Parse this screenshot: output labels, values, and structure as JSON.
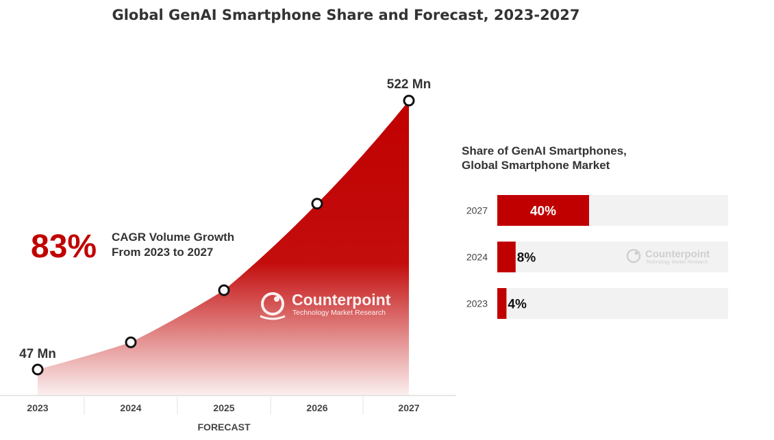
{
  "title": "Global GenAI Smartphone Share and Forecast, 2023-2027",
  "colors": {
    "accent": "#c00000",
    "track": "#f2f2f2",
    "text": "#222222",
    "muted": "#444444"
  },
  "chart_data": [
    {
      "type": "area",
      "categories": [
        "2023",
        "2024",
        "2025",
        "2026",
        "2027"
      ],
      "values": [
        47,
        95,
        187,
        340,
        522
      ],
      "unit": "Mn",
      "ylim": [
        0,
        560
      ],
      "data_labels": {
        "2023": "47 Mn",
        "2027": "522 Mn"
      },
      "xlabel": "FORECAST",
      "annotation": {
        "big": "83%",
        "line1": "CAGR Volume Growth",
        "line2": "From 2023 to 2027"
      }
    },
    {
      "type": "bar",
      "orientation": "horizontal",
      "title_line1": "Share of GenAI Smartphones,",
      "title_line2": "Global Smartphone Market",
      "categories": [
        "2027",
        "2024",
        "2023"
      ],
      "values": [
        40,
        8,
        4
      ],
      "labels": [
        "40%",
        "8%",
        "4%"
      ],
      "xlim": [
        0,
        100
      ]
    }
  ],
  "watermark": {
    "brand": "Counterpoint",
    "tagline": "Technology Market Research"
  }
}
